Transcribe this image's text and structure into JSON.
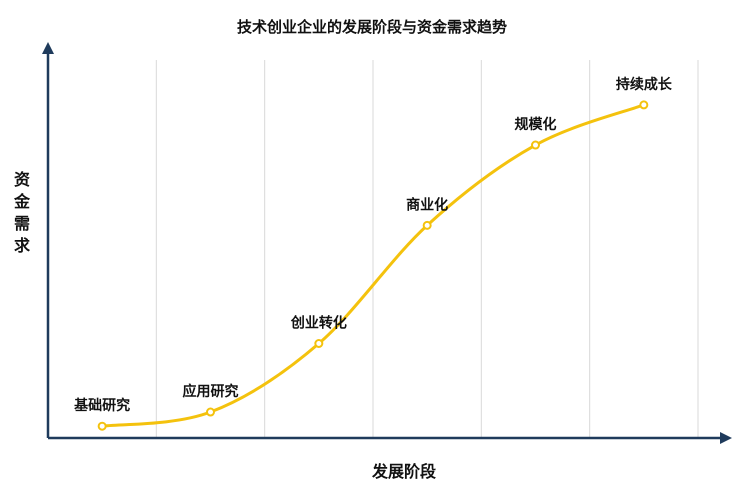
{
  "chart_data": {
    "type": "line",
    "title": "技术创业企业的发展阶段与资金需求趋势",
    "xlabel": "发展阶段",
    "ylabel": "资金需求",
    "categories": [
      "基础研究",
      "应用研究",
      "创业转化",
      "商业化",
      "规模化",
      "持续成长"
    ],
    "values": [
      1.0,
      2.2,
      8.0,
      18.0,
      24.8,
      28.2
    ],
    "ylim": [
      0,
      32
    ],
    "grid": "vertical",
    "axis_ticks": false,
    "colors": {
      "line": "#f4c20d",
      "axis": "#1f3b5c",
      "grid": "#d9d9d9",
      "text": "#111111"
    }
  }
}
